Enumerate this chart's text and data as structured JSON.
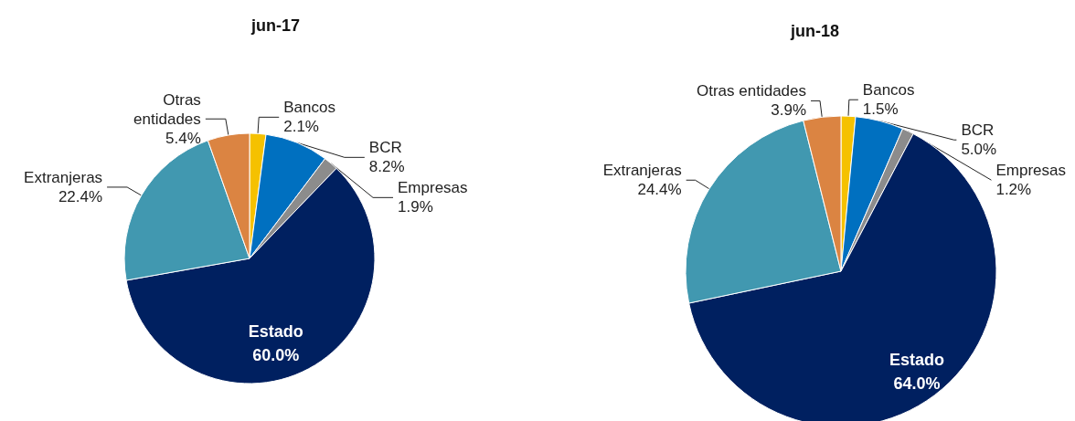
{
  "chart_data": [
    {
      "type": "pie",
      "title": "jun-17",
      "categories": [
        "Bancos",
        "BCR",
        "Empresas",
        "Estado",
        "Extranjeras",
        "Otras\nentidades"
      ],
      "values": [
        2.1,
        8.2,
        1.9,
        60.0,
        22.4,
        5.4
      ],
      "value_labels": [
        "2.1%",
        "8.2%",
        "1.9%",
        "60.0%",
        "22.4%",
        "5.4%"
      ],
      "colors": [
        "#f5c100",
        "#0070c0",
        "#8c8c8c",
        "#002060",
        "#4198b0",
        "#db8442"
      ],
      "legend": false
    },
    {
      "type": "pie",
      "title": "jun-18",
      "categories": [
        "Bancos",
        "BCR",
        "Empresas",
        "Estado",
        "Extranjeras",
        "Otras entidades"
      ],
      "values": [
        1.5,
        5.0,
        1.2,
        64.0,
        24.4,
        3.9
      ],
      "value_labels": [
        "1.5%",
        "5.0%",
        "1.2%",
        "64.0%",
        "24.4%",
        "3.9%"
      ],
      "colors": [
        "#f5c100",
        "#0070c0",
        "#8c8c8c",
        "#002060",
        "#4198b0",
        "#db8442"
      ],
      "legend": false
    }
  ]
}
